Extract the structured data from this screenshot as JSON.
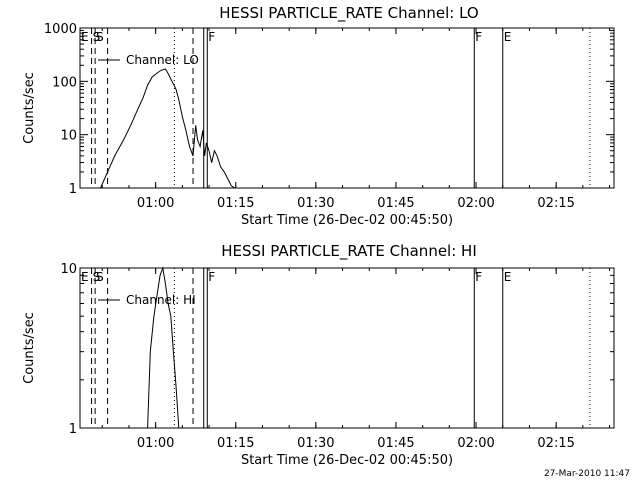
{
  "chart_data": [
    {
      "type": "line",
      "title": "HESSI PARTICLE_RATE Channel: LO",
      "xlabel": "Start Time (26-Dec-02 00:45:50)",
      "ylabel": "Counts/sec",
      "y_scale": "log",
      "ylim": [
        1,
        1000
      ],
      "xlim_minutes_after_start": [
        0,
        100
      ],
      "x_tick_labels": [
        "01:00",
        "01:15",
        "01:30",
        "01:45",
        "02:00",
        "02:15"
      ],
      "y_tick_labels": [
        "1",
        "10",
        "100",
        "1000"
      ],
      "legend": {
        "label": "Channel: LO",
        "placement": "top-left"
      },
      "markers": [
        {
          "label": "E",
          "time": "00:45:50",
          "style": "solid"
        },
        {
          "label": "S",
          "time": "00:48:00",
          "style": "dashed"
        },
        {
          "label": "S",
          "time": "00:48:40",
          "style": "dashed"
        },
        {
          "label": "",
          "time": "00:51:00",
          "style": "dashed"
        },
        {
          "label": "",
          "time": "01:03:30",
          "style": "dotted"
        },
        {
          "label": "",
          "time": "01:07:00",
          "style": "dashed"
        },
        {
          "label": "",
          "time": "01:09:00",
          "style": "solid"
        },
        {
          "label": "F",
          "time": "01:09:40",
          "style": "solid"
        },
        {
          "label": "F",
          "time": "01:59:40",
          "style": "solid"
        },
        {
          "label": "E",
          "time": "02:05:00",
          "style": "solid"
        },
        {
          "label": "",
          "time": "02:21:20",
          "style": "dotted"
        }
      ],
      "series": [
        {
          "name": "Channel: LO",
          "x": [
            "00:49:40",
            "00:51:00",
            "00:52:20",
            "00:54:00",
            "00:55:20",
            "00:56:40",
            "00:57:40",
            "00:58:30",
            "00:59:20",
            "01:00:10",
            "01:01:00",
            "01:01:50",
            "01:02:20",
            "01:02:50",
            "01:03:20",
            "01:03:50",
            "01:04:20",
            "01:05:00",
            "01:05:40",
            "01:06:20",
            "01:07:00",
            "01:07:30",
            "01:07:50",
            "01:08:20",
            "01:08:50",
            "01:09:10",
            "01:09:30",
            "01:10:00",
            "01:10:30",
            "01:11:00",
            "01:11:30",
            "01:12:10",
            "01:12:50",
            "01:13:30",
            "01:14:10",
            "01:14:50"
          ],
          "y": [
            1,
            2,
            4,
            8,
            15,
            30,
            50,
            85,
            120,
            140,
            160,
            170,
            140,
            110,
            90,
            70,
            45,
            22,
            12,
            6,
            4,
            15,
            8,
            6,
            12,
            4,
            7,
            5,
            3,
            5,
            4,
            2.5,
            2,
            1.5,
            1.1,
            1
          ]
        }
      ]
    },
    {
      "type": "line",
      "title": "HESSI PARTICLE_RATE Channel: HI",
      "xlabel": "Start Time (26-Dec-02 00:45:50)",
      "ylabel": "Counts/sec",
      "y_scale": "log",
      "ylim": [
        1,
        10
      ],
      "xlim_minutes_after_start": [
        0,
        100
      ],
      "x_tick_labels": [
        "01:00",
        "01:15",
        "01:30",
        "01:45",
        "02:00",
        "02:15"
      ],
      "y_tick_labels": [
        "1",
        "10"
      ],
      "legend": {
        "label": "Channel: HI",
        "placement": "top-left"
      },
      "markers": [
        {
          "label": "E",
          "time": "00:45:50",
          "style": "solid"
        },
        {
          "label": "S",
          "time": "00:48:00",
          "style": "dashed"
        },
        {
          "label": "S",
          "time": "00:48:40",
          "style": "dashed"
        },
        {
          "label": "",
          "time": "00:51:00",
          "style": "dashed"
        },
        {
          "label": "",
          "time": "01:03:30",
          "style": "dotted"
        },
        {
          "label": "",
          "time": "01:07:00",
          "style": "dashed"
        },
        {
          "label": "",
          "time": "01:09:00",
          "style": "solid"
        },
        {
          "label": "F",
          "time": "01:09:40",
          "style": "solid"
        },
        {
          "label": "F",
          "time": "01:59:40",
          "style": "solid"
        },
        {
          "label": "E",
          "time": "02:05:00",
          "style": "solid"
        },
        {
          "label": "",
          "time": "02:21:20",
          "style": "dotted"
        }
      ],
      "series": [
        {
          "name": "Channel: HI",
          "x": [
            "00:58:30",
            "00:59:00",
            "00:59:40",
            "01:00:20",
            "01:00:50",
            "01:01:20",
            "01:01:50",
            "01:02:20",
            "01:02:50",
            "01:03:20",
            "01:03:50",
            "01:04:20"
          ],
          "y": [
            1,
            3,
            5,
            7,
            9,
            10,
            8,
            6,
            5,
            3,
            1.8,
            1
          ]
        }
      ]
    }
  ],
  "stamp": "27-Mar-2010 11:47"
}
